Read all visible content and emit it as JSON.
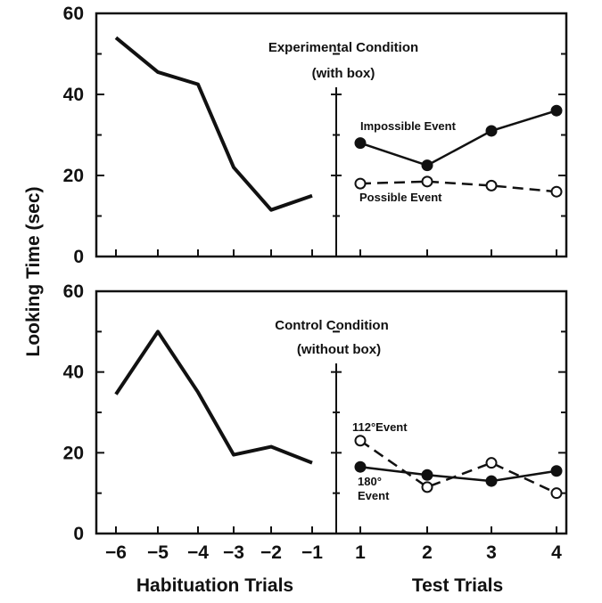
{
  "chart_data": {
    "type": "line",
    "ylabel": "Looking Time (sec)",
    "xlabel_habituation": "Habituation Trials",
    "xlabel_test": "Test Trials",
    "ylim": [
      0,
      60
    ],
    "yticks": [
      "0",
      "20",
      "40",
      "60"
    ],
    "habituation_x": [
      "−6",
      "−5",
      "−4",
      "−3",
      "−2",
      "−1"
    ],
    "test_x": [
      "1",
      "2",
      "3",
      "4"
    ],
    "panels": [
      {
        "title_line1": "Experimental Condition",
        "title_line2": "(with box)",
        "habituation": [
          54,
          45.5,
          42.5,
          22,
          11.5,
          15
        ],
        "test_series": [
          {
            "name": "Impossible Event",
            "values": [
              28,
              22.5,
              31,
              36
            ],
            "style": "solid",
            "marker": "filled"
          },
          {
            "name": "Possible Event",
            "values": [
              18,
              18.5,
              17.5,
              16
            ],
            "style": "dashed",
            "marker": "open"
          }
        ]
      },
      {
        "title_line1": "Control Condition",
        "title_line2": "(without box)",
        "habituation": [
          34.5,
          50,
          35,
          19.5,
          21.5,
          17.5
        ],
        "test_series": [
          {
            "name": "112°Event",
            "values": [
              23,
              11.5,
              17.5,
              10
            ],
            "style": "dashed",
            "marker": "open"
          },
          {
            "name_line1": "180°",
            "name_line2": "Event",
            "values": [
              16.5,
              14.5,
              13,
              15.5
            ],
            "style": "solid",
            "marker": "filled"
          }
        ]
      }
    ]
  }
}
